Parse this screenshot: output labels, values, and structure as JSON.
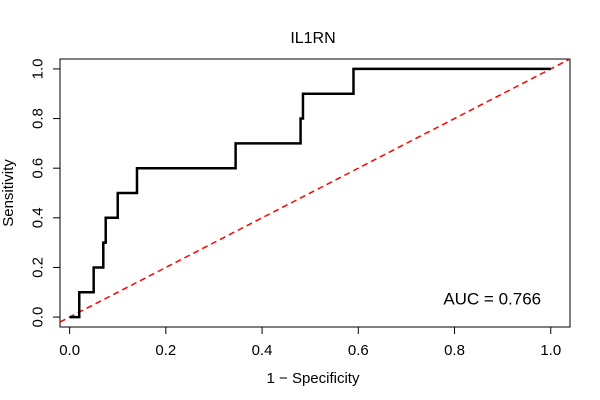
{
  "chart_data": {
    "type": "line",
    "title": "IL1RN",
    "xlabel": "1 − Specificity",
    "ylabel": "Sensitivity",
    "xlim": [
      -0.02,
      1.04
    ],
    "ylim": [
      -0.04,
      1.04
    ],
    "x_ticks": [
      0.0,
      0.2,
      0.4,
      0.6,
      0.8,
      1.0
    ],
    "y_ticks": [
      0.0,
      0.2,
      0.4,
      0.6,
      0.8,
      1.0
    ],
    "x_tick_labels": [
      "0.0",
      "0.2",
      "0.4",
      "0.6",
      "0.8",
      "1.0"
    ],
    "y_tick_labels": [
      "0.0",
      "0.2",
      "0.4",
      "0.6",
      "0.8",
      "1.0"
    ],
    "grid": false,
    "series": [
      {
        "name": "ROC curve",
        "color": "#000000",
        "style": "solid",
        "x": [
          0.0,
          0.02,
          0.02,
          0.05,
          0.05,
          0.07,
          0.07,
          0.075,
          0.075,
          0.1,
          0.1,
          0.14,
          0.14,
          0.345,
          0.345,
          0.48,
          0.48,
          0.485,
          0.485,
          0.59,
          0.59,
          1.0
        ],
        "y": [
          0.0,
          0.0,
          0.1,
          0.1,
          0.2,
          0.2,
          0.3,
          0.3,
          0.4,
          0.4,
          0.5,
          0.5,
          0.6,
          0.6,
          0.7,
          0.7,
          0.8,
          0.8,
          0.9,
          0.9,
          1.0,
          1.0
        ]
      },
      {
        "name": "reference diagonal",
        "color": "#ff0000",
        "style": "dashed",
        "x": [
          -0.02,
          1.04
        ],
        "y": [
          -0.02,
          1.04
        ]
      }
    ],
    "annotations": [
      {
        "text": "AUC = 0.766",
        "x": 0.98,
        "y": 0.05
      }
    ]
  }
}
